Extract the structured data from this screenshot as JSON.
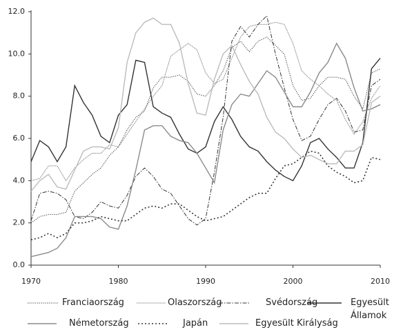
{
  "chart_data": {
    "type": "line",
    "x": [
      1970,
      1971,
      1972,
      1973,
      1974,
      1975,
      1976,
      1977,
      1978,
      1979,
      1980,
      1981,
      1982,
      1983,
      1984,
      1985,
      1986,
      1987,
      1988,
      1989,
      1990,
      1991,
      1992,
      1993,
      1994,
      1995,
      1996,
      1997,
      1998,
      1999,
      2000,
      2001,
      2002,
      2003,
      2004,
      2005,
      2006,
      2007,
      2008,
      2009,
      2010
    ],
    "xlim": [
      1970,
      2010
    ],
    "xticks": [
      1970,
      1980,
      1990,
      2000,
      2010
    ],
    "ylim": [
      0,
      12
    ],
    "yticks": [
      {
        "value": 0,
        "label": "0.0"
      },
      {
        "value": 2,
        "label": "2.0"
      },
      {
        "value": 4,
        "label": "4.0"
      },
      {
        "value": 6,
        "label": "6.0"
      },
      {
        "value": 8,
        "label": "8.0"
      },
      {
        "value": 10,
        "label": "10.0"
      },
      {
        "value": 12,
        "label": "12.0"
      }
    ],
    "series": [
      {
        "name": "Franciaország",
        "color": "#333333",
        "line_style": "dotted",
        "values": [
          2.0,
          2.3,
          2.4,
          2.4,
          2.5,
          3.5,
          3.9,
          4.3,
          4.6,
          5.2,
          5.6,
          6.4,
          7.0,
          7.3,
          8.4,
          8.9,
          8.9,
          9.0,
          8.7,
          8.1,
          8.0,
          8.5,
          9.2,
          10.3,
          10.6,
          10.1,
          10.6,
          10.8,
          10.4,
          10.0,
          8.5,
          7.8,
          7.9,
          8.5,
          8.9,
          8.9,
          8.8,
          8.0,
          7.4,
          9.1,
          9.3
        ]
      },
      {
        "name": "Olaszország",
        "color": "#555555",
        "line_style": "dense-dotted",
        "values": [
          4.0,
          4.1,
          4.7,
          4.7,
          4.0,
          4.6,
          5.0,
          5.3,
          5.3,
          5.7,
          5.6,
          6.2,
          6.8,
          7.4,
          8.0,
          8.5,
          9.9,
          10.2,
          10.5,
          10.2,
          9.1,
          8.6,
          8.8,
          9.8,
          10.8,
          11.3,
          11.4,
          11.4,
          11.5,
          11.4,
          10.5,
          9.2,
          8.8,
          8.5,
          8.1,
          7.8,
          6.9,
          6.2,
          6.8,
          7.9,
          8.5
        ]
      },
      {
        "name": "Svédország",
        "color": "#333333",
        "line_style": "dash-dot",
        "values": [
          2.1,
          3.4,
          3.5,
          3.4,
          3.1,
          2.3,
          2.2,
          2.5,
          3.0,
          2.8,
          2.7,
          3.3,
          4.2,
          4.6,
          4.2,
          3.6,
          3.4,
          2.8,
          2.2,
          1.9,
          2.2,
          4.4,
          7.0,
          10.6,
          11.3,
          10.8,
          11.4,
          11.8,
          10.0,
          8.4,
          6.9,
          5.9,
          6.1,
          6.9,
          7.6,
          7.9,
          7.3,
          6.3,
          6.4,
          8.5,
          8.8
        ]
      },
      {
        "name": "Egyesült Államok",
        "color": "#333333",
        "line_style": "solid",
        "values": [
          4.9,
          5.9,
          5.6,
          4.9,
          5.6,
          8.5,
          7.7,
          7.1,
          6.1,
          5.8,
          7.1,
          7.6,
          9.7,
          9.6,
          7.5,
          7.2,
          7.0,
          6.2,
          5.5,
          5.3,
          5.6,
          6.8,
          7.5,
          6.9,
          6.1,
          5.6,
          5.4,
          4.9,
          4.5,
          4.2,
          4.0,
          4.7,
          5.8,
          6.0,
          5.5,
          5.1,
          4.6,
          4.6,
          5.8,
          9.3,
          9.8
        ]
      },
      {
        "name": "Németország",
        "color": "#8a8a8a",
        "line_style": "solid",
        "values": [
          0.4,
          0.5,
          0.6,
          0.8,
          1.3,
          2.3,
          2.3,
          2.3,
          2.2,
          1.8,
          1.7,
          2.8,
          4.5,
          6.4,
          6.6,
          6.6,
          6.1,
          5.9,
          5.8,
          5.3,
          4.6,
          3.9,
          6.4,
          7.6,
          8.1,
          8.0,
          8.6,
          9.2,
          8.9,
          8.2,
          7.5,
          7.5,
          8.2,
          9.1,
          9.6,
          10.5,
          9.8,
          8.4,
          7.3,
          7.4,
          7.6
        ]
      },
      {
        "name": "Japán",
        "color": "#333333",
        "line_style": "coarse-dotted",
        "values": [
          1.2,
          1.3,
          1.5,
          1.3,
          1.5,
          2.0,
          2.0,
          2.1,
          2.3,
          2.2,
          2.1,
          2.1,
          2.4,
          2.7,
          2.8,
          2.7,
          2.9,
          2.9,
          2.6,
          2.3,
          2.1,
          2.2,
          2.3,
          2.6,
          2.9,
          3.2,
          3.4,
          3.4,
          4.1,
          4.7,
          4.8,
          5.1,
          5.4,
          5.3,
          4.7,
          4.4,
          4.2,
          3.9,
          4.0,
          5.1,
          5.0
        ]
      },
      {
        "name": "Egyesült Királyság",
        "color": "#bbbbbb",
        "line_style": "solid",
        "values": [
          3.5,
          4.0,
          4.3,
          3.7,
          3.6,
          4.5,
          5.4,
          5.6,
          5.6,
          5.5,
          6.5,
          9.6,
          11.0,
          11.5,
          11.7,
          11.4,
          11.4,
          10.5,
          8.6,
          7.2,
          7.1,
          8.8,
          10.0,
          10.4,
          9.5,
          8.7,
          8.1,
          7.0,
          6.3,
          6.0,
          5.5,
          5.1,
          5.2,
          5.0,
          4.8,
          4.8,
          5.4,
          5.4,
          5.7,
          7.7,
          8.0
        ]
      }
    ]
  }
}
